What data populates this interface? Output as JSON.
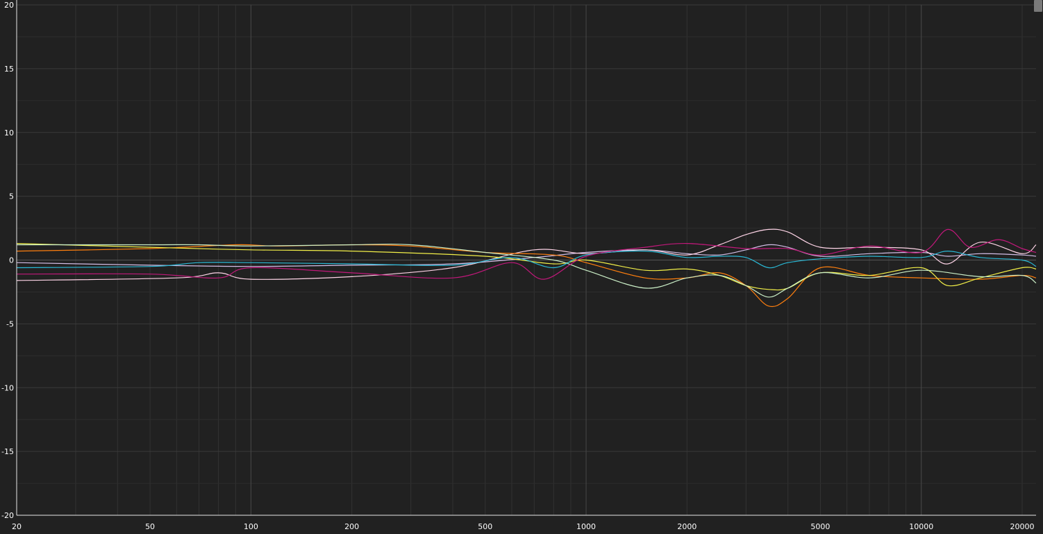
{
  "chart_data": {
    "type": "line",
    "title": "",
    "xlabel": "",
    "ylabel": "",
    "x_scale": "log",
    "xlim": [
      20,
      22000
    ],
    "ylim": [
      -20,
      20
    ],
    "grid": true,
    "x_ticks": [
      "20",
      "50",
      "100",
      "200",
      "500",
      "1000",
      "2000",
      "5000",
      "10000",
      "20000"
    ],
    "y_ticks": [
      "20",
      "15",
      "10",
      "5",
      "0",
      "-5",
      "-10",
      "-15",
      "-20"
    ],
    "series": [
      {
        "color": "#d4bfe8",
        "x": [
          20,
          50,
          100,
          200,
          400,
          700,
          1000,
          1500,
          2000,
          2500,
          3000,
          3500,
          4000,
          5000,
          7000,
          10000,
          12000,
          15000,
          20000,
          22000
        ],
        "y": [
          -0.2,
          -0.4,
          -0.5,
          -0.4,
          -0.3,
          0.2,
          0.6,
          0.8,
          0.5,
          0.4,
          0.8,
          1.2,
          1.0,
          0.3,
          0.5,
          0.6,
          0.3,
          0.5,
          0.4,
          0.3
        ]
      },
      {
        "color": "#ffd5e8",
        "x": [
          20,
          60,
          80,
          100,
          200,
          400,
          700,
          1000,
          1500,
          2000,
          2500,
          3000,
          3500,
          4000,
          5000,
          7000,
          10000,
          12000,
          15000,
          20000,
          22000
        ],
        "y": [
          -1.6,
          -1.4,
          -1.0,
          -1.5,
          -1.3,
          -0.6,
          0.8,
          0.5,
          0.8,
          0.4,
          1.2,
          2.0,
          2.4,
          2.2,
          1.0,
          1.0,
          0.8,
          -0.3,
          1.4,
          0.5,
          1.2
        ]
      },
      {
        "color": "#ff7f0e",
        "x": [
          20,
          50,
          90,
          120,
          200,
          300,
          500,
          800,
          1000,
          1500,
          2000,
          2500,
          3000,
          3500,
          4000,
          5000,
          7000,
          10000,
          15000,
          20000,
          22000
        ],
        "y": [
          0.7,
          0.9,
          1.2,
          1.1,
          1.2,
          1.1,
          0.6,
          0.4,
          -0.2,
          -1.4,
          -1.4,
          -1.0,
          -2.0,
          -3.6,
          -3.0,
          -0.6,
          -1.2,
          -1.4,
          -1.5,
          -1.2,
          -1.4
        ]
      },
      {
        "color": "#f3f048",
        "x": [
          20,
          50,
          100,
          200,
          500,
          800,
          1000,
          1500,
          2000,
          2500,
          3000,
          3500,
          4000,
          5000,
          7000,
          10000,
          12000,
          15000,
          20000,
          22000
        ],
        "y": [
          1.3,
          1.0,
          0.8,
          0.7,
          0.3,
          -0.3,
          0.0,
          -0.8,
          -0.7,
          -1.2,
          -2.0,
          -2.3,
          -2.2,
          -1.0,
          -1.2,
          -0.6,
          -2.0,
          -1.4,
          -0.6,
          -0.7
        ]
      },
      {
        "color": "#ccf0c8",
        "x": [
          20,
          50,
          70,
          100,
          200,
          300,
          500,
          800,
          1000,
          1500,
          2000,
          2500,
          3000,
          3500,
          4000,
          5000,
          7000,
          10000,
          15000,
          20000,
          22000
        ],
        "y": [
          1.2,
          1.2,
          1.2,
          1.1,
          1.2,
          1.2,
          0.6,
          0.0,
          -0.8,
          -2.2,
          -1.4,
          -1.2,
          -2.0,
          -2.9,
          -2.2,
          -1.0,
          -1.4,
          -0.8,
          -1.3,
          -1.2,
          -1.8
        ]
      },
      {
        "color": "#29b9d6",
        "x": [
          20,
          50,
          70,
          100,
          200,
          400,
          600,
          800,
          1000,
          1500,
          2000,
          2500,
          3000,
          3500,
          4000,
          5000,
          7000,
          10000,
          12000,
          15000,
          20000,
          22000
        ],
        "y": [
          -0.6,
          -0.5,
          -0.2,
          -0.2,
          -0.3,
          -0.4,
          0.2,
          -0.6,
          0.4,
          0.7,
          0.2,
          0.3,
          0.2,
          -0.6,
          -0.2,
          0.1,
          0.3,
          0.2,
          0.7,
          0.2,
          0.0,
          -0.5
        ]
      },
      {
        "color": "#c2187b",
        "x": [
          20,
          50,
          80,
          100,
          200,
          400,
          600,
          750,
          1000,
          1500,
          2000,
          3000,
          4000,
          5000,
          7000,
          10000,
          12000,
          14000,
          17000,
          20000,
          22000
        ],
        "y": [
          -1.1,
          -1.1,
          -1.4,
          -0.6,
          -1.0,
          -1.4,
          -0.2,
          -1.5,
          0.3,
          1.0,
          1.3,
          0.9,
          0.9,
          0.4,
          1.1,
          0.6,
          2.4,
          1.0,
          1.6,
          0.9,
          0.6
        ]
      }
    ]
  }
}
